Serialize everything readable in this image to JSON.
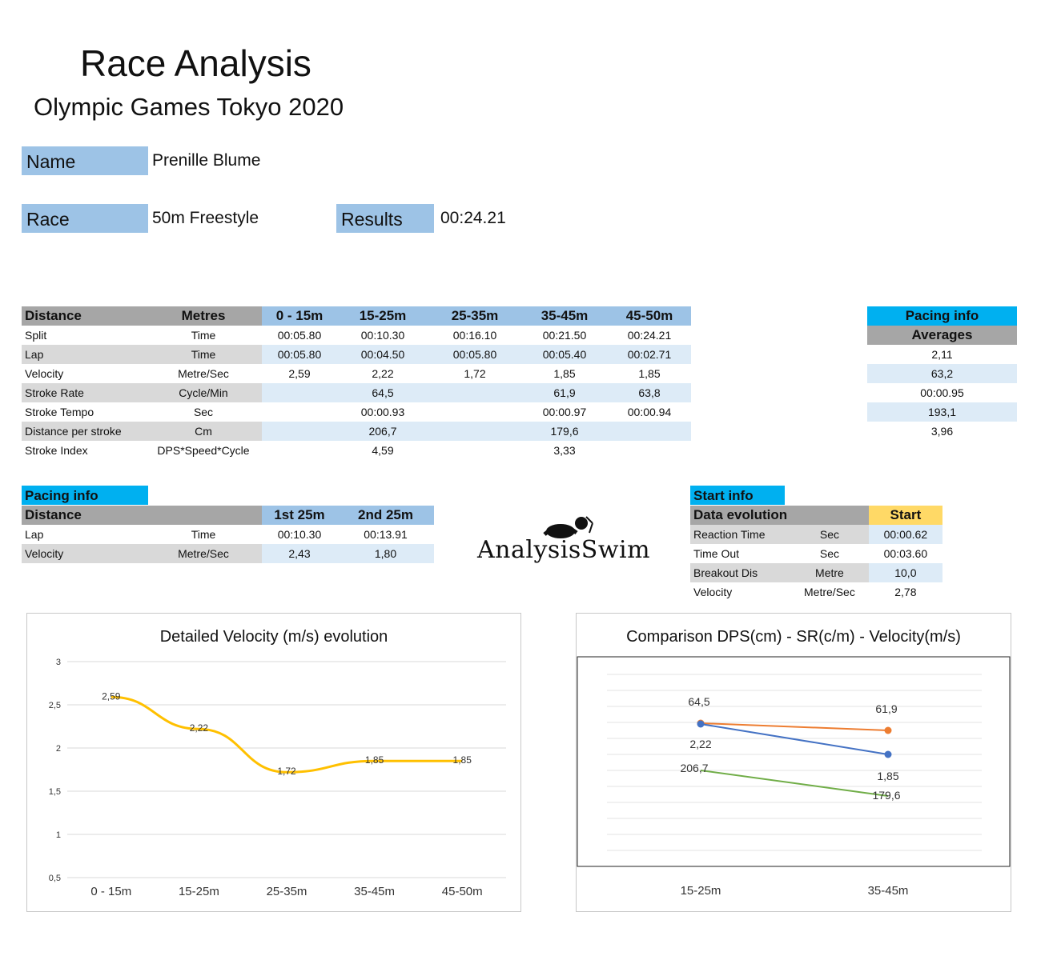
{
  "header": {
    "title": "Race Analysis",
    "subtitle": "Olympic Games Tokyo 2020"
  },
  "athlete": {
    "name_label": "Name",
    "name_value": "Prenille Blume",
    "race_label": "Race",
    "race_value": "50m Freestyle",
    "results_label": "Results",
    "results_value": "00:24.21"
  },
  "main_table": {
    "headers": [
      "Distance",
      "Metres",
      "0 - 15m",
      "15-25m",
      "25-35m",
      "35-45m",
      "45-50m"
    ],
    "rows": [
      [
        "Split",
        "Time",
        "00:05.80",
        "00:10.30",
        "00:16.10",
        "00:21.50",
        "00:24.21"
      ],
      [
        "Lap",
        "Time",
        "00:05.80",
        "00:04.50",
        "00:05.80",
        "00:05.40",
        "00:02.71"
      ],
      [
        "Velocity",
        "Metre/Sec",
        "2,59",
        "2,22",
        "1,72",
        "1,85",
        "1,85"
      ],
      [
        "Stroke Rate",
        "Cycle/Min",
        "",
        "64,5",
        "",
        "61,9",
        "63,8"
      ],
      [
        "Stroke Tempo",
        "Sec",
        "",
        "00:00.93",
        "",
        "00:00.97",
        "00:00.94"
      ],
      [
        "Distance per stroke",
        "Cm",
        "",
        "206,7",
        "",
        "179,6",
        ""
      ],
      [
        "Stroke Index",
        "DPS*Speed*Cycle",
        "",
        "4,59",
        "",
        "3,33",
        ""
      ]
    ]
  },
  "averages": {
    "title": "Pacing info",
    "subtitle": "Averages",
    "values": [
      "",
      "",
      "2,11",
      "63,2",
      "00:00.95",
      "193,1",
      "3,96"
    ]
  },
  "pacing": {
    "title": "Pacing info",
    "headers": [
      "Distance",
      "",
      "1st 25m",
      "2nd 25m"
    ],
    "rows": [
      [
        "Lap",
        "Time",
        "00:10.30",
        "00:13.91"
      ],
      [
        "Velocity",
        "Metre/Sec",
        "2,43",
        "1,80"
      ]
    ]
  },
  "start_info": {
    "title": "Start info",
    "headers": [
      "Data evolution",
      "",
      "Start"
    ],
    "rows": [
      [
        "Reaction Time",
        "Sec",
        "00:00.62"
      ],
      [
        "Time Out",
        "Sec",
        "00:03.60"
      ],
      [
        "Breakout Dis",
        "Metre",
        "10,0"
      ],
      [
        "Velocity",
        "Metre/Sec",
        "2,78"
      ]
    ]
  },
  "logo": {
    "text": "AnalysisSwim"
  },
  "chart_data": [
    {
      "type": "line",
      "title": "Detailed Velocity (m/s)  evolution",
      "categories": [
        "0 - 15m",
        "15-25m",
        "25-35m",
        "35-45m",
        "45-50m"
      ],
      "values": [
        2.59,
        2.22,
        1.72,
        1.85,
        1.85
      ],
      "labels": [
        "2,59",
        "2,22",
        "1,72",
        "1,85",
        "1,85"
      ],
      "yticks": [
        "3",
        "2,5",
        "2",
        "1,5",
        "1",
        "0,5"
      ],
      "ylim": [
        0.5,
        3
      ],
      "grid": true,
      "color": "#ffc000"
    },
    {
      "type": "line",
      "title": "Comparison DPS(cm) - SR(c/m) - Velocity(m/s)",
      "categories": [
        "15-25m",
        "35-45m"
      ],
      "series": [
        {
          "values": [
            64.5,
            61.9
          ],
          "labels": [
            "64,5",
            "61,9"
          ],
          "color": "#ed7d31"
        },
        {
          "values": [
            2.22,
            1.85
          ],
          "labels": [
            "2,22",
            "1,85"
          ],
          "color": "#4472c4"
        },
        {
          "values": [
            206.7,
            179.6
          ],
          "labels": [
            "206,7",
            "179,6"
          ],
          "color": "#70ad47"
        }
      ],
      "grid": true
    }
  ]
}
